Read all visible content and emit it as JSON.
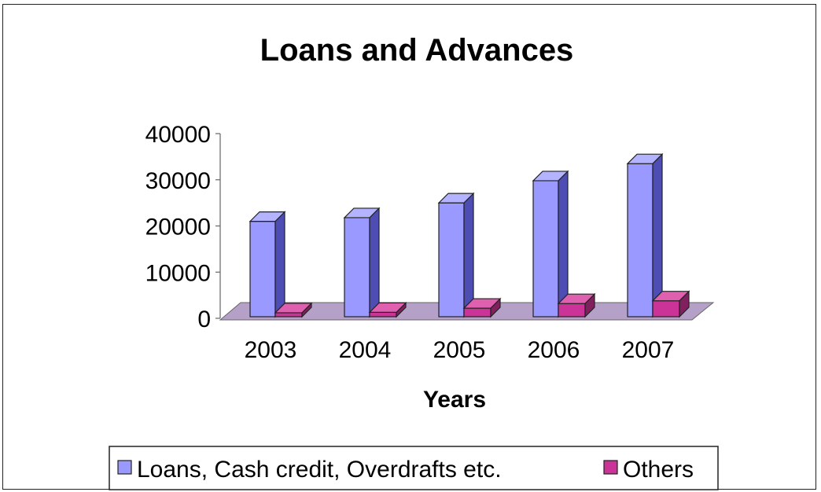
{
  "chart_data": {
    "type": "bar",
    "title": "Loans and Advances",
    "xlabel": "Years",
    "ylabel": "",
    "categories": [
      "2003",
      "2004",
      "2005",
      "2006",
      "2007"
    ],
    "ylim": [
      0,
      40000
    ],
    "yticks": [
      0,
      10000,
      20000,
      30000,
      40000
    ],
    "series": [
      {
        "name": "Loans, Cash credit, Overdrafts etc.",
        "values": [
          21000,
          21800,
          25000,
          29800,
          33500
        ],
        "color": "#9999ff"
      },
      {
        "name": "Others",
        "values": [
          1200,
          1300,
          2200,
          3200,
          3800
        ],
        "color": "#cc3399"
      }
    ],
    "legend_position": "bottom",
    "style": "3d-clustered-column",
    "grid": false
  }
}
